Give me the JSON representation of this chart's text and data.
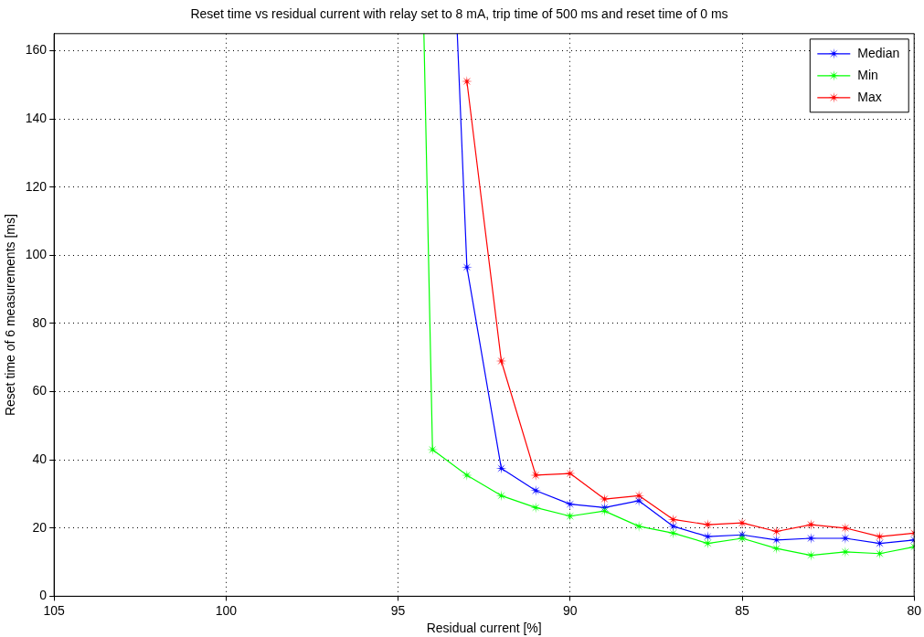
{
  "chart_data": {
    "type": "line",
    "title": "Reset time vs residual current with relay set to 8 mA, trip time of 500 ms and reset time of 0 ms",
    "xlabel": "Residual current [%]",
    "ylabel": "Reset time of 6 measurements [ms]",
    "series": [
      {
        "name": "Median",
        "color": "#0000ff",
        "x": [
          93.28,
          93,
          92,
          91,
          90,
          89,
          88,
          87,
          86,
          85,
          84,
          83,
          82,
          81,
          80
        ],
        "values": [
          165,
          96.5,
          37.5,
          31,
          27,
          26,
          28,
          20.5,
          17.5,
          18,
          16.5,
          17,
          17,
          15.5,
          16.5
        ]
      },
      {
        "name": "Min",
        "color": "#00ff00",
        "x": [
          94.25,
          94,
          93,
          92,
          91,
          90,
          89,
          88,
          87,
          86,
          85,
          84,
          83,
          82,
          81,
          80
        ],
        "values": [
          165,
          43,
          35.5,
          29.5,
          26,
          23.5,
          25,
          20.5,
          18.5,
          15.5,
          17,
          14,
          12,
          13,
          12.5,
          14.5
        ]
      },
      {
        "name": "Max",
        "color": "#ff0000",
        "x": [
          93,
          92,
          91,
          90,
          89,
          88,
          87,
          86,
          85,
          84,
          83,
          82,
          81,
          80
        ],
        "values": [
          151,
          69,
          35.5,
          36,
          28.5,
          29.5,
          22.5,
          21,
          21.5,
          19,
          21,
          20,
          17.5,
          18.5
        ]
      }
    ],
    "xlim": [
      105,
      80
    ],
    "xticks": [
      105,
      100,
      95,
      90,
      85,
      80
    ],
    "ylim": [
      0,
      165
    ],
    "yticks": [
      0,
      20,
      40,
      60,
      80,
      100,
      120,
      140,
      160
    ],
    "grid": true,
    "legend": "top right",
    "marker": "star",
    "line_style": "solid"
  }
}
